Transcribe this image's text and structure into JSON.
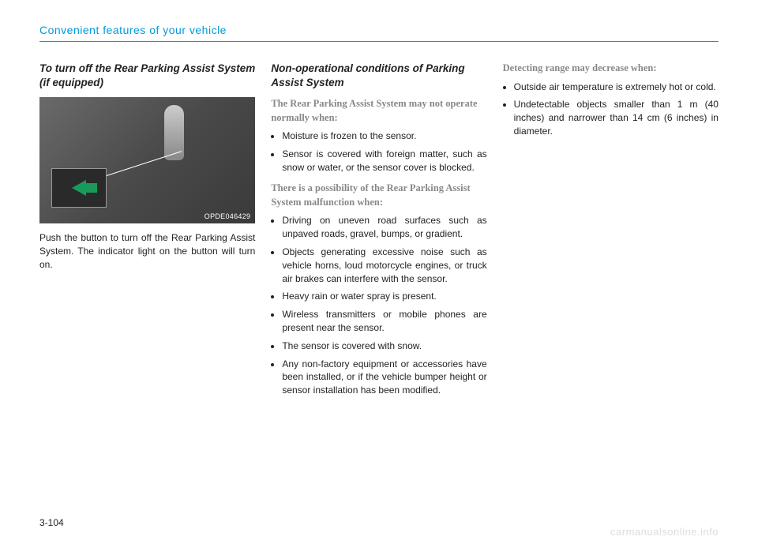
{
  "header": {
    "title": "Convenient features of your vehicle"
  },
  "column1": {
    "heading": "To turn off the Rear Parking Assist System (if equipped)",
    "figure_label": "OPDE046429",
    "body": "Push the button to turn off the Rear Parking Assist System. The indicator light on the button will turn on."
  },
  "column2": {
    "heading": "Non-operational conditions of Parking Assist System",
    "sub1": "The Rear Parking Assist System may not operate normally when:",
    "list1": [
      "Moisture is frozen to the sensor.",
      "Sensor is covered with foreign matter, such as snow or water, or the sensor cover is blocked."
    ],
    "sub2": "There is a possibility of the Rear Parking Assist System malfunction when:",
    "list2": [
      "Driving on uneven road surfaces such as unpaved roads, gravel, bumps, or gradient.",
      "Objects generating excessive noise such as vehicle horns, loud motorcycle engines, or truck air brakes can interfere with the sensor.",
      "Heavy rain or water spray is present.",
      "Wireless transmitters or mobile phones are present near the sensor.",
      "The sensor is covered with snow.",
      "Any non-factory equipment or accessories have been installed, or if the vehicle bumper height or sensor installation has been modified."
    ]
  },
  "column3": {
    "sub1": "Detecting range may decrease when:",
    "list1": [
      "Outside air temperature is extremely hot or cold.",
      "Undetectable objects smaller than 1 m (40 inches) and narrower than 14 cm (6 inches) in diameter."
    ]
  },
  "footer": {
    "page": "3-104",
    "watermark": "carmanualsonline.info"
  }
}
